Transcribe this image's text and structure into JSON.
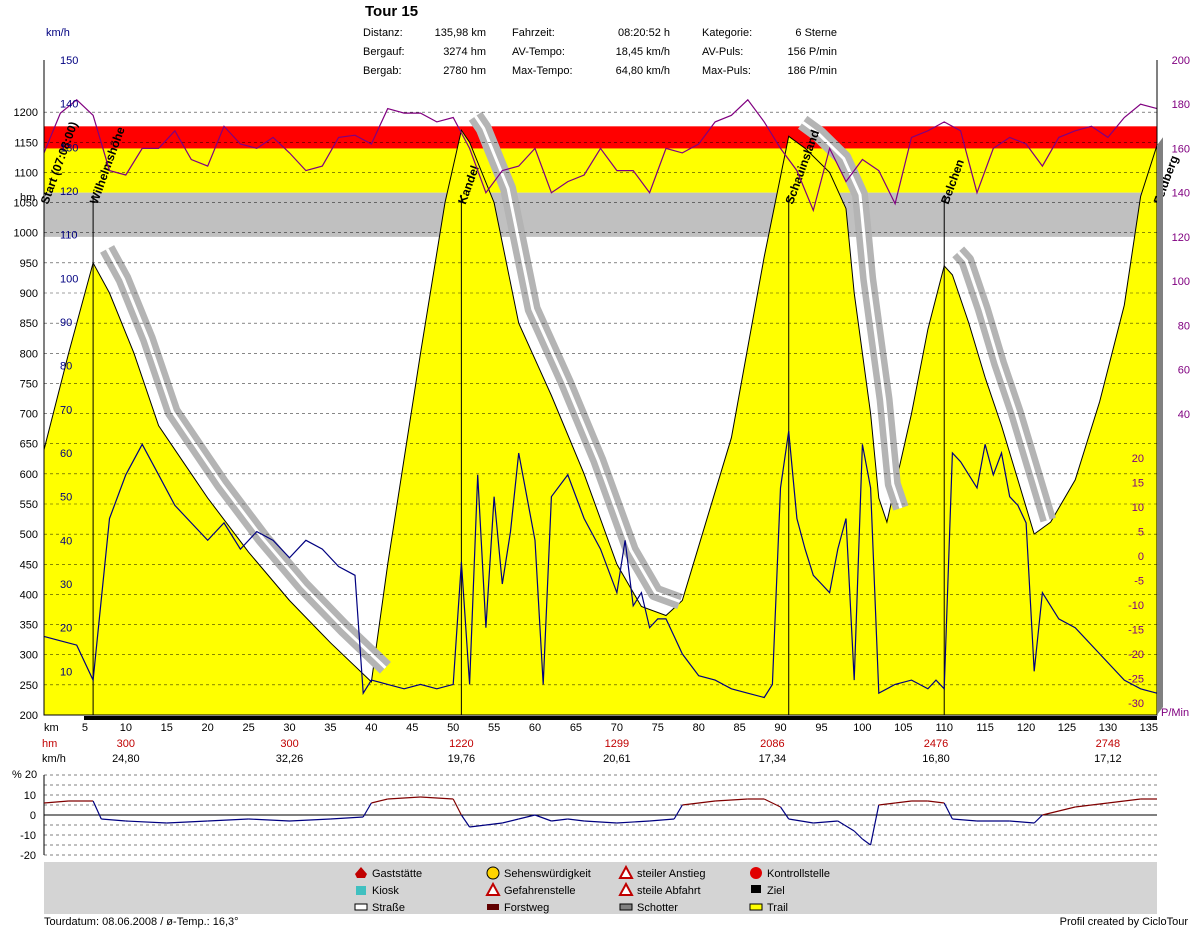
{
  "header": {
    "title": "Tour 15",
    "stats": [
      {
        "label": "Distanz:",
        "value": "135,98 km"
      },
      {
        "label": "Bergauf:",
        "value": "3274 hm"
      },
      {
        "label": "Bergab:",
        "value": "2780 hm"
      },
      {
        "label": "Fahrzeit:",
        "value": "08:20:52 h"
      },
      {
        "label": "AV-Tempo:",
        "value": "18,45 km/h"
      },
      {
        "label": "Max-Tempo:",
        "value": "64,80 km/h"
      },
      {
        "label": "Kategorie:",
        "value": "6 Sterne"
      },
      {
        "label": "AV-Puls:",
        "value": "156 P/min"
      },
      {
        "label": "Max-Puls:",
        "value": "186 P/min"
      }
    ]
  },
  "axes": {
    "kmh_unit": "km/h",
    "hm_unit": "hm",
    "pulse_unit": "P/Min",
    "km_unit": "km",
    "pct_unit": "% 20"
  },
  "legend": {
    "items": [
      {
        "label": "Gaststätte",
        "icon": "house-icon"
      },
      {
        "label": "Kiosk",
        "icon": "kiosk-icon"
      },
      {
        "label": "Straße",
        "icon": "road-swatch"
      },
      {
        "label": "Sehenswürdigkeit",
        "icon": "smiley-icon"
      },
      {
        "label": "Gefahrenstelle",
        "icon": "warning-icon"
      },
      {
        "label": "Forstweg",
        "icon": "forest-road-swatch"
      },
      {
        "label": "steiler Anstieg",
        "icon": "steep-up-icon"
      },
      {
        "label": "steile Abfahrt",
        "icon": "steep-down-icon"
      },
      {
        "label": "Schotter",
        "icon": "gravel-swatch"
      },
      {
        "label": "Kontrollstelle",
        "icon": "stop-icon"
      },
      {
        "label": "Ziel",
        "icon": "finish-flag-icon"
      },
      {
        "label": "Trail",
        "icon": "trail-swatch"
      }
    ]
  },
  "footer": {
    "left": "Tourdatum: 08.06.2008  /  ø-Temp.: 16,3°",
    "right": "Profil created by CicloTour"
  },
  "colors": {
    "zone_red": "#ff0000",
    "zone_yellow": "#ffff00",
    "zone_gray": "#c0c0c0",
    "elevation_fill": "#ffff00",
    "speed_line": "#000080",
    "pulse_line": "#800080",
    "band": "#b4b4b4",
    "gradient_up": "#800000",
    "gradient_down": "#000080"
  },
  "chart_data": {
    "type": "area",
    "x_unit": "km",
    "xlim": [
      0,
      136
    ],
    "x_ticks": [
      5,
      10,
      15,
      20,
      25,
      30,
      35,
      40,
      45,
      50,
      55,
      60,
      65,
      70,
      75,
      80,
      85,
      90,
      95,
      100,
      105,
      110,
      115,
      120,
      125,
      130,
      135
    ],
    "elevation": {
      "ylim": [
        200,
        1250
      ],
      "y_ticks": [
        200,
        250,
        300,
        350,
        400,
        450,
        500,
        550,
        600,
        650,
        700,
        750,
        800,
        850,
        900,
        950,
        1000,
        1050,
        1100,
        1150,
        1200
      ],
      "x": [
        0,
        3,
        6,
        8,
        11,
        14,
        17,
        20,
        25,
        30,
        35,
        40,
        42,
        46,
        49,
        51,
        52,
        55,
        58,
        62,
        66,
        70,
        73,
        76,
        78,
        80,
        84,
        88,
        91,
        93,
        96,
        98,
        99,
        101,
        102,
        103,
        106,
        108,
        110,
        111,
        113,
        115,
        117,
        119,
        121,
        123,
        126,
        129,
        132,
        134,
        136
      ],
      "values": [
        640,
        800,
        950,
        900,
        800,
        680,
        620,
        560,
        470,
        390,
        320,
        255,
        450,
        800,
        1050,
        1170,
        1150,
        1050,
        850,
        730,
        600,
        450,
        380,
        365,
        390,
        480,
        660,
        960,
        1160,
        1140,
        1100,
        1040,
        900,
        700,
        560,
        520,
        700,
        840,
        945,
        930,
        850,
        760,
        680,
        590,
        500,
        520,
        590,
        720,
        880,
        1060,
        1145
      ]
    },
    "speed": {
      "unit": "km/h",
      "ylim": [
        0,
        150
      ],
      "y_ticks": [
        10,
        20,
        30,
        40,
        50,
        60,
        70,
        80,
        90,
        100,
        110,
        120,
        130,
        140,
        150
      ],
      "x": [
        0,
        2,
        4,
        6,
        8,
        10,
        12,
        14,
        16,
        18,
        20,
        22,
        24,
        26,
        28,
        30,
        32,
        34,
        36,
        38,
        39,
        40,
        42,
        44,
        46,
        48,
        50,
        51,
        52,
        53,
        54,
        55,
        56,
        57,
        58,
        60,
        61,
        62,
        64,
        66,
        68,
        70,
        71,
        72,
        73,
        74,
        75,
        76,
        77,
        78,
        80,
        82,
        84,
        86,
        88,
        89,
        90,
        91,
        92,
        93,
        94,
        95,
        96,
        97,
        98,
        99,
        100,
        101,
        102,
        104,
        106,
        108,
        109,
        110,
        111,
        112,
        113,
        114,
        115,
        116,
        117,
        118,
        119,
        120,
        121,
        122,
        124,
        126,
        128,
        130,
        132,
        134,
        136
      ],
      "values": [
        18,
        17,
        16,
        8,
        45,
        55,
        62,
        55,
        48,
        44,
        40,
        44,
        38,
        42,
        40,
        36,
        40,
        38,
        34,
        32,
        5,
        8,
        7,
        6,
        7,
        6,
        7,
        35,
        7,
        55,
        20,
        50,
        30,
        42,
        60,
        40,
        7,
        50,
        55,
        45,
        38,
        28,
        40,
        25,
        28,
        20,
        22,
        22,
        18,
        14,
        9,
        8,
        6,
        5,
        4,
        7,
        52,
        65,
        45,
        38,
        32,
        30,
        28,
        38,
        45,
        8,
        62,
        52,
        5,
        7,
        8,
        6,
        8,
        6,
        60,
        58,
        55,
        52,
        62,
        55,
        60,
        50,
        48,
        44,
        10,
        28,
        22,
        20,
        16,
        12,
        8,
        6,
        5
      ]
    },
    "pulse": {
      "unit": "P/Min",
      "ylim": [
        -35,
        200
      ],
      "y_ticks": [
        -30,
        -25,
        -20,
        -15,
        -10,
        -5,
        0,
        5,
        10,
        15,
        20,
        40,
        60,
        80,
        100,
        120,
        140,
        160,
        180,
        200
      ],
      "zones": [
        {
          "from": 140,
          "to": 160,
          "color": "#c0c0c0"
        },
        {
          "from": 160,
          "to": 170,
          "color": "#ffff00"
        },
        {
          "from": 170,
          "to": 186,
          "color": "#ff0000"
        }
      ],
      "x": [
        0,
        2,
        4,
        6,
        8,
        10,
        12,
        14,
        16,
        18,
        20,
        22,
        24,
        26,
        28,
        30,
        32,
        34,
        36,
        38,
        40,
        42,
        44,
        46,
        48,
        50,
        52,
        54,
        56,
        58,
        60,
        62,
        64,
        66,
        68,
        70,
        72,
        74,
        76,
        78,
        80,
        82,
        84,
        86,
        88,
        90,
        92,
        94,
        96,
        98,
        100,
        102,
        104,
        106,
        108,
        110,
        112,
        114,
        116,
        118,
        120,
        122,
        124,
        126,
        128,
        130,
        132,
        134,
        136
      ],
      "values": [
        158,
        176,
        182,
        175,
        150,
        148,
        160,
        160,
        168,
        155,
        152,
        170,
        162,
        160,
        165,
        158,
        150,
        152,
        165,
        166,
        162,
        178,
        176,
        176,
        172,
        174,
        160,
        140,
        150,
        152,
        160,
        140,
        145,
        148,
        160,
        150,
        150,
        140,
        160,
        158,
        162,
        172,
        175,
        182,
        172,
        160,
        150,
        132,
        160,
        145,
        155,
        150,
        135,
        165,
        168,
        172,
        168,
        140,
        160,
        165,
        162,
        152,
        165,
        168,
        170,
        165,
        174,
        180,
        178
      ]
    },
    "gradient": {
      "unit": "%",
      "ylim": [
        -20,
        20
      ],
      "y_ticks": [
        -20,
        -10,
        0,
        10,
        20
      ],
      "x": [
        0,
        3,
        6,
        7,
        10,
        15,
        20,
        25,
        30,
        35,
        39,
        40,
        42,
        46,
        50,
        51,
        52,
        54,
        56,
        58,
        60,
        62,
        64,
        66,
        70,
        74,
        77,
        78,
        82,
        86,
        88,
        90,
        91,
        94,
        97,
        99,
        100,
        101,
        102,
        104,
        106,
        108,
        110,
        111,
        114,
        118,
        121,
        122,
        126,
        130,
        134,
        136
      ],
      "values": [
        6,
        7,
        7,
        -2,
        -3,
        -4,
        -3,
        -2,
        -3,
        -2,
        -1,
        6,
        8,
        9,
        8,
        0,
        -6,
        -5,
        -4,
        -2,
        0,
        -3,
        -2,
        -3,
        -4,
        -3,
        -2,
        5,
        7,
        8,
        8,
        4,
        -2,
        -4,
        -3,
        -8,
        -12,
        -15,
        5,
        6,
        7,
        7,
        6,
        -2,
        -3,
        -3,
        -4,
        0,
        4,
        6,
        8,
        8
      ]
    },
    "waypoints": [
      {
        "name": "Start (07:08:00)",
        "km": 0
      },
      {
        "name": "Wilhelmshöhe",
        "km": 6
      },
      {
        "name": "Kandel",
        "km": 51
      },
      {
        "name": "Schauinsland",
        "km": 91
      },
      {
        "name": "Belchen",
        "km": 110
      },
      {
        "name": "Feldberg",
        "km": 136
      }
    ],
    "cumulative_rows": {
      "km": [
        10,
        30,
        51,
        70,
        89,
        109,
        130
      ],
      "hm": [
        "300",
        "300",
        "1220",
        "1299",
        "2086",
        "2476",
        "2748"
      ],
      "kmh": [
        "24,80",
        "32,26",
        "19,76",
        "20,61",
        "17,34",
        "16,80",
        "17,12"
      ]
    }
  }
}
